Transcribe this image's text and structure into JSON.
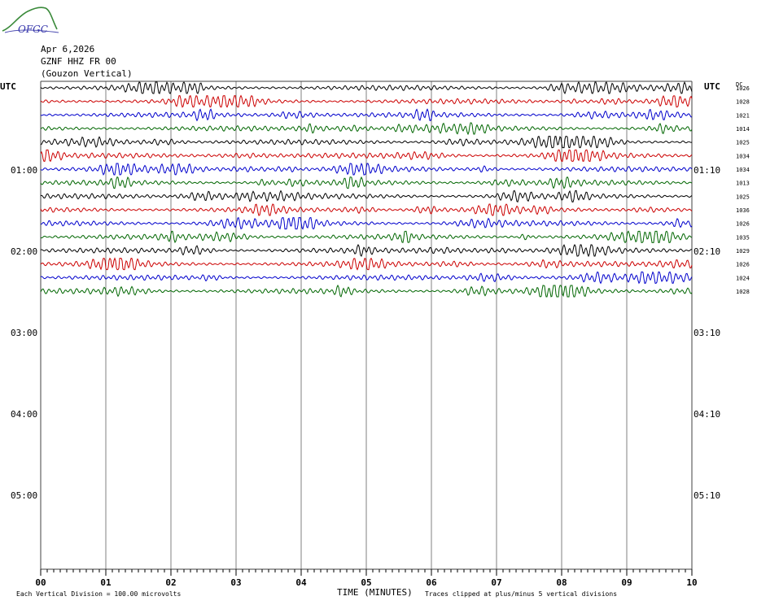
{
  "logo": {
    "text": "OFGC"
  },
  "header": {
    "date": "Apr 6,2026",
    "station": "GZNF HHZ FR 00",
    "name": "(Gouzon Vertical)"
  },
  "axis_left_title": "UTC",
  "axis_right_title": "UTC",
  "dc_title": "DC",
  "footer": {
    "left_note": "Each Vertical Division =  100.00 microvolts",
    "xlabel": "TIME (MINUTES)",
    "right_note": "Traces clipped at plus/minus 5 vertical divisions"
  },
  "colors": {
    "cycle": [
      "#000000",
      "#cc0000",
      "#0000cc",
      "#006600"
    ],
    "grid": "#808080"
  },
  "chart_data": {
    "type": "line",
    "title": "Apr 6,2026 GZNF HHZ FR 00 (Gouzon Vertical)",
    "xlabel": "TIME (MINUTES)",
    "x_ticks": [
      "00",
      "01",
      "02",
      "03",
      "04",
      "05",
      "06",
      "07",
      "08",
      "09",
      "10"
    ],
    "xlim": [
      0,
      10
    ],
    "rows_per_hour": 6,
    "minutes_per_row": 10,
    "trace_count": 16,
    "left_time_labels": [
      "01:00",
      "02:00",
      "03:00",
      "04:00",
      "05:00"
    ],
    "right_time_labels": [
      "01:10",
      "02:10",
      "03:10",
      "04:10",
      "05:10"
    ],
    "dc_offsets": [
      "1026",
      "1028",
      "1021",
      "1014",
      "1025",
      "1034",
      "1034",
      "1013",
      "1025",
      "1036",
      "1026",
      "1035",
      "1029",
      "1026",
      "1024",
      "1028"
    ],
    "units": "microvolts",
    "vertical_division_uv": 100.0,
    "clip_divisions": 5
  }
}
